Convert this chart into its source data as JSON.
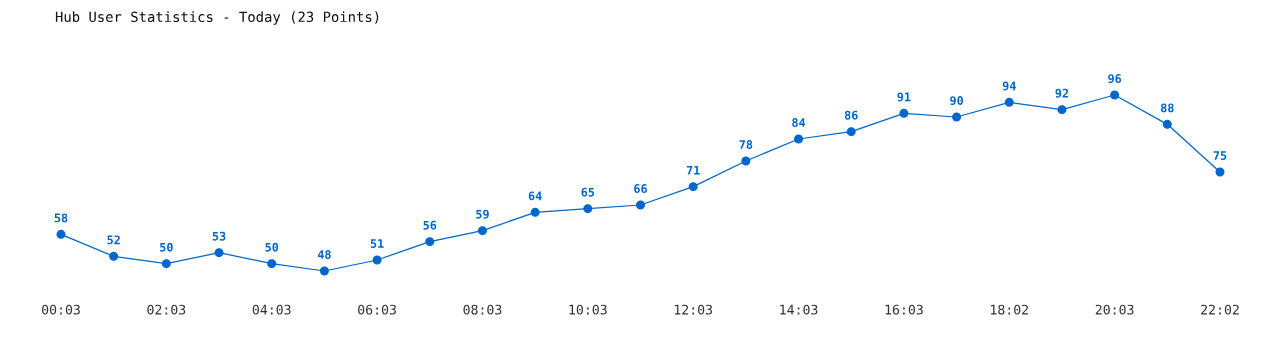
{
  "chart_data": {
    "type": "line",
    "title": "Hub User Statistics - Today (23 Points)",
    "categories": [
      "00:03",
      null,
      "02:03",
      null,
      "04:03",
      null,
      "06:03",
      null,
      "08:03",
      null,
      "10:03",
      null,
      "12:03",
      null,
      "14:03",
      null,
      "16:03",
      null,
      "18:02",
      null,
      "20:03",
      null,
      "22:02"
    ],
    "values": [
      58,
      52,
      50,
      53,
      50,
      48,
      51,
      56,
      59,
      64,
      65,
      66,
      71,
      78,
      84,
      86,
      91,
      90,
      94,
      92,
      96,
      88,
      75
    ],
    "color": "#0066cc",
    "data_labels": true,
    "marker": "circle",
    "line_style": "solid"
  }
}
